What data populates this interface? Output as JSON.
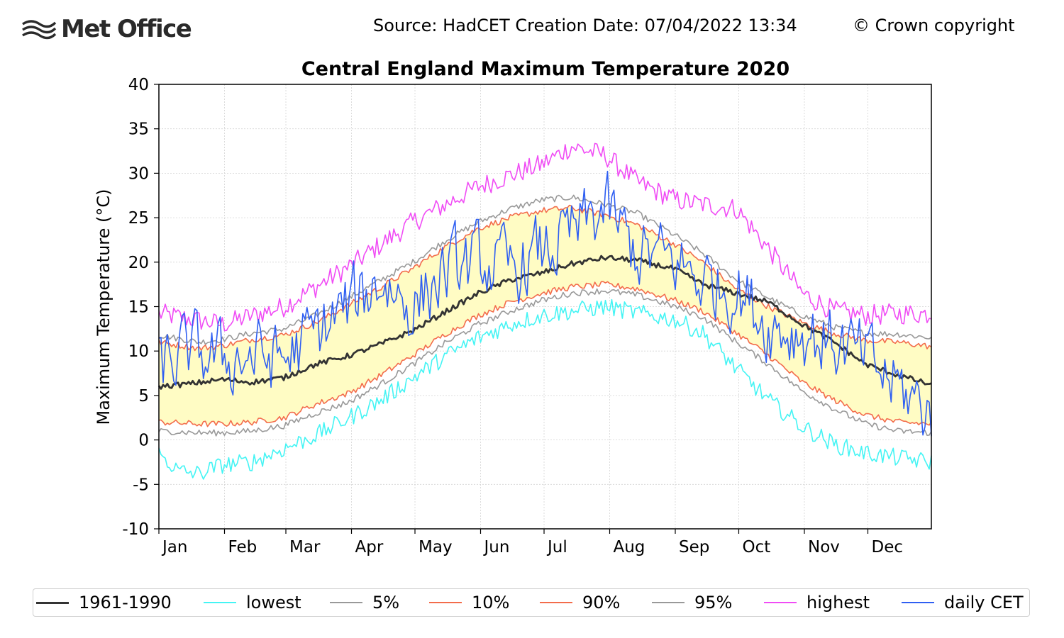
{
  "header": {
    "brand": "Met Office",
    "source_line": "Source: HadCET  Creation Date: 07/04/2022 13:34",
    "copyright": "© Crown copyright"
  },
  "chart_data": {
    "type": "line",
    "title": "Central England Maximum Temperature 2020",
    "ylabel": "Maximum Temperature (°C)",
    "xlabel": "",
    "ylim": [
      -10,
      40
    ],
    "yticks": [
      "-10",
      "-5",
      "0",
      "5",
      "10",
      "15",
      "20",
      "25",
      "30",
      "35",
      "40"
    ],
    "months": [
      "Jan",
      "Feb",
      "Mar",
      "Apr",
      "May",
      "Jun",
      "Jul",
      "Aug",
      "Sep",
      "Oct",
      "Nov",
      "Dec"
    ],
    "month_days": [
      31,
      29,
      31,
      30,
      31,
      30,
      31,
      31,
      30,
      31,
      30,
      31
    ],
    "grid": true,
    "shaded_band": {
      "between": [
        "10%",
        "90%"
      ],
      "color": "#fffcc4"
    },
    "series": [
      {
        "name": "highest",
        "color": "#f04cf5",
        "keys": [
          1,
          14.2,
          31,
          13.0,
          60,
          15.0,
          91,
          19.5,
          121,
          24.5,
          152,
          28.5,
          182,
          31.0,
          196,
          33.0,
          212,
          32.0,
          227,
          29.0,
          245,
          27.0,
          258,
          26.5,
          274,
          26.0,
          289,
          21.5,
          305,
          16.5,
          320,
          14.5,
          335,
          14.0,
          350,
          14.2,
          366,
          14.2
        ],
        "noise": 1.2
      },
      {
        "name": "95%",
        "color": "#999999",
        "keys": [
          1,
          11.8,
          20,
          11.0,
          31,
          11.3,
          45,
          12.0,
          60,
          12.5,
          75,
          14.0,
          91,
          16.0,
          106,
          18.0,
          121,
          20.0,
          137,
          22.5,
          152,
          24.5,
          167,
          26.0,
          182,
          27.0,
          196,
          27.3,
          212,
          26.5,
          227,
          25.5,
          245,
          23.0,
          258,
          21.0,
          274,
          18.0,
          289,
          16.0,
          305,
          14.0,
          320,
          12.7,
          335,
          12.0,
          350,
          11.9,
          366,
          11.5
        ],
        "noise": 0.35
      },
      {
        "name": "90%",
        "color": "#f36c4b",
        "keys": [
          1,
          11.0,
          20,
          10.3,
          31,
          10.6,
          45,
          11.3,
          60,
          11.8,
          75,
          13.2,
          91,
          15.2,
          106,
          17.2,
          121,
          19.3,
          137,
          21.8,
          152,
          23.8,
          167,
          25.0,
          182,
          25.8,
          196,
          26.1,
          212,
          25.3,
          227,
          24.2,
          245,
          22.0,
          258,
          20.0,
          274,
          17.0,
          289,
          15.0,
          305,
          13.2,
          320,
          12.0,
          335,
          11.2,
          350,
          11.0,
          366,
          10.5
        ],
        "noise": 0.35
      },
      {
        "name": "10%",
        "color": "#f36c4b",
        "keys": [
          1,
          2.0,
          20,
          1.8,
          31,
          1.8,
          45,
          2.0,
          60,
          2.5,
          75,
          4.0,
          91,
          5.3,
          106,
          7.3,
          121,
          9.5,
          137,
          12.0,
          152,
          14.0,
          167,
          15.5,
          182,
          16.5,
          196,
          17.2,
          212,
          17.5,
          227,
          17.0,
          245,
          15.7,
          258,
          14.5,
          274,
          12.0,
          289,
          9.5,
          305,
          6.5,
          320,
          4.5,
          335,
          2.8,
          350,
          2.0,
          366,
          1.8
        ],
        "noise": 0.35
      },
      {
        "name": "5%",
        "color": "#999999",
        "keys": [
          1,
          1.0,
          20,
          0.8,
          31,
          0.8,
          45,
          1.0,
          60,
          1.6,
          75,
          3.0,
          91,
          4.3,
          106,
          6.3,
          121,
          8.5,
          137,
          11.0,
          152,
          13.0,
          167,
          14.5,
          182,
          15.7,
          196,
          16.5,
          212,
          16.8,
          227,
          16.3,
          245,
          15.0,
          258,
          13.8,
          274,
          11.0,
          289,
          8.5,
          305,
          5.5,
          320,
          3.5,
          335,
          1.8,
          350,
          1.0,
          366,
          0.8
        ],
        "noise": 0.35
      },
      {
        "name": "lowest",
        "color": "#44f4f4",
        "keys": [
          1,
          -1.5,
          10,
          -3.5,
          20,
          -3.8,
          31,
          -2.8,
          45,
          -2.5,
          60,
          -1.0,
          75,
          0.5,
          91,
          2.5,
          106,
          4.5,
          121,
          7.0,
          137,
          9.5,
          152,
          11.5,
          167,
          13.0,
          182,
          14.0,
          196,
          14.5,
          212,
          15.0,
          227,
          14.3,
          245,
          13.5,
          258,
          12.0,
          274,
          8.0,
          289,
          4.5,
          305,
          1.5,
          320,
          -0.5,
          335,
          -1.5,
          350,
          -2.0,
          366,
          -2.5
        ],
        "noise": 1.0
      },
      {
        "name": "1961-1990",
        "color": "#333333",
        "keys": [
          1,
          6.0,
          15,
          6.3,
          31,
          6.8,
          45,
          6.5,
          60,
          7.0,
          75,
          8.5,
          91,
          9.5,
          106,
          10.8,
          121,
          12.3,
          137,
          14.5,
          152,
          16.5,
          167,
          18.0,
          182,
          18.8,
          196,
          19.8,
          212,
          20.5,
          227,
          20.2,
          245,
          19.2,
          258,
          17.5,
          274,
          16.5,
          289,
          15.5,
          305,
          13.0,
          320,
          11.0,
          335,
          8.5,
          350,
          7.3,
          366,
          6.2
        ],
        "noise": 0.3,
        "width": 2.8
      },
      {
        "name": "daily CET",
        "color": "#2f5ff2",
        "keys": [
          1,
          8.0,
          15,
          10.0,
          31,
          9.0,
          45,
          9.5,
          60,
          9.0,
          75,
          12.0,
          91,
          15.0,
          106,
          18.0,
          121,
          15.0,
          137,
          19.0,
          152,
          20.0,
          167,
          19.0,
          182,
          21.0,
          196,
          23.0,
          212,
          26.0,
          227,
          21.0,
          245,
          20.0,
          258,
          18.0,
          274,
          17.0,
          289,
          13.0,
          305,
          12.0,
          320,
          11.0,
          335,
          9.0,
          350,
          6.0,
          366,
          3.0
        ],
        "noise": 4.5
      }
    ],
    "legend": [
      {
        "label": "1961-1990",
        "color": "#333333",
        "width": 3
      },
      {
        "label": "lowest",
        "color": "#44f4f4",
        "width": 2
      },
      {
        "label": "5%",
        "color": "#999999",
        "width": 2
      },
      {
        "label": "10%",
        "color": "#f36c4b",
        "width": 2
      },
      {
        "label": "90%",
        "color": "#f36c4b",
        "width": 2
      },
      {
        "label": "95%",
        "color": "#999999",
        "width": 2
      },
      {
        "label": "highest",
        "color": "#f04cf5",
        "width": 2
      },
      {
        "label": "daily CET",
        "color": "#2f5ff2",
        "width": 2
      }
    ],
    "legend_position": "bottom"
  }
}
